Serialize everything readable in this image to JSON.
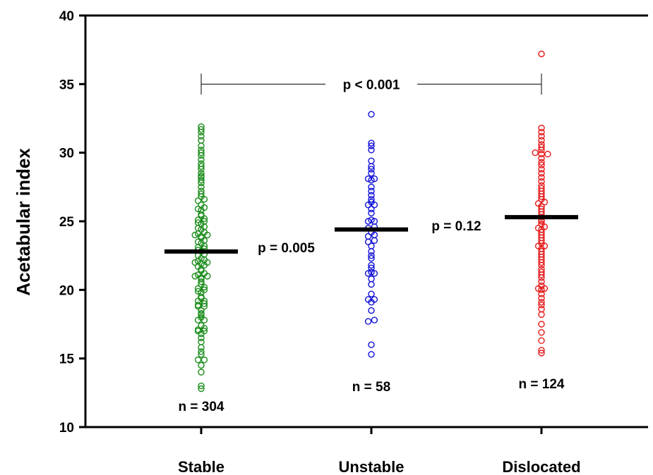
{
  "chart_data": {
    "type": "scatter",
    "title": "",
    "xlabel": "",
    "ylabel": "Acetabular index",
    "ylim": [
      10,
      40
    ],
    "yticks": [
      10,
      15,
      20,
      25,
      30,
      35,
      40
    ],
    "ytick_labels": [
      "10",
      "15",
      "20",
      "25",
      "30",
      "35",
      "40"
    ],
    "grid": false,
    "categories": [
      "Stable",
      "Unstable",
      "Dislocated"
    ],
    "series": [
      {
        "category": "Stable",
        "color": "#1a8c1a",
        "mean": 22.8,
        "n_label": "n = 304",
        "values": [
          12.8,
          13.0,
          14.0,
          14.5,
          14.9,
          14.9,
          15.3,
          15.5,
          15.8,
          16.2,
          16.5,
          16.8,
          17.0,
          17.1,
          17.0,
          17.2,
          17.4,
          17.8,
          17.8,
          18.0,
          18.2,
          18.3,
          18.5,
          18.8,
          18.8,
          18.9,
          19.0,
          19.2,
          19.2,
          19.4,
          19.5,
          19.8,
          19.9,
          20.0,
          20.1,
          20.2,
          20.4,
          20.6,
          20.8,
          20.9,
          21.0,
          21.0,
          21.1,
          21.2,
          21.4,
          21.5,
          21.7,
          21.8,
          21.9,
          22.0,
          22.0,
          22.1,
          22.2,
          22.3,
          22.5,
          22.6,
          22.8,
          22.9,
          23.0,
          23.1,
          23.2,
          23.4,
          23.5,
          23.6,
          23.8,
          23.9,
          24.0,
          24.0,
          24.1,
          24.2,
          24.4,
          24.5,
          24.6,
          24.8,
          24.9,
          25.0,
          25.1,
          25.2,
          25.4,
          25.5,
          25.8,
          25.9,
          26.0,
          26.2,
          26.5,
          26.6,
          26.8,
          27.0,
          27.2,
          27.5,
          27.8,
          28.0,
          28.2,
          28.3,
          28.5,
          28.8,
          29.0,
          29.2,
          29.5,
          29.8,
          30.0,
          30.2,
          30.5,
          30.9,
          31.2,
          31.5,
          31.7,
          31.9
        ]
      },
      {
        "category": "Unstable",
        "color": "#1010d8",
        "mean": 24.4,
        "n_label": "n = 58",
        "values": [
          15.3,
          16.0,
          17.7,
          17.8,
          18.5,
          19.1,
          19.3,
          19.3,
          19.7,
          20.4,
          20.8,
          21.2,
          21.2,
          21.3,
          21.6,
          21.8,
          22.3,
          22.5,
          22.8,
          23.2,
          23.5,
          23.6,
          23.9,
          24.0,
          24.2,
          24.5,
          24.6,
          25.0,
          25.0,
          25.1,
          25.6,
          25.9,
          26.2,
          26.2,
          26.4,
          26.6,
          26.9,
          27.2,
          27.5,
          28.0,
          28.1,
          28.1,
          28.5,
          28.8,
          29.0,
          29.4,
          30.2,
          30.5,
          30.7,
          32.8
        ]
      },
      {
        "category": "Dislocated",
        "color": "#e41a1a",
        "mean": 25.3,
        "n_label": "n = 124",
        "values": [
          15.4,
          15.6,
          16.3,
          16.9,
          17.5,
          18.2,
          18.6,
          18.9,
          19.1,
          19.4,
          19.7,
          20.0,
          20.1,
          20.1,
          20.3,
          20.6,
          20.9,
          21.1,
          21.3,
          21.5,
          21.8,
          22.0,
          22.2,
          22.4,
          22.6,
          22.8,
          23.0,
          23.2,
          23.2,
          23.4,
          23.6,
          23.8,
          24.0,
          24.2,
          24.4,
          24.5,
          24.6,
          24.8,
          25.0,
          25.1,
          25.3,
          25.5,
          25.7,
          25.9,
          26.1,
          26.3,
          26.4,
          26.6,
          26.8,
          27.0,
          27.2,
          27.4,
          27.6,
          27.9,
          28.2,
          28.5,
          28.8,
          29.1,
          29.3,
          29.6,
          29.9,
          29.9,
          30.0,
          30.2,
          30.4,
          30.6,
          30.9,
          31.2,
          31.5,
          31.8,
          37.2
        ]
      }
    ],
    "annotations": [
      {
        "text": "p < 0.001",
        "type": "bracket",
        "from": "Stable",
        "to": "Dislocated",
        "y": 35.0
      },
      {
        "text": "p = 0.005",
        "type": "label",
        "between": [
          "Stable",
          "Unstable"
        ],
        "y": 23.1
      },
      {
        "text": "p = 0.12",
        "type": "label",
        "between": [
          "Unstable",
          "Dislocated"
        ],
        "y": 24.7
      }
    ]
  }
}
